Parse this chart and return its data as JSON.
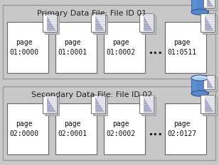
{
  "bg_color": "#c8c8c8",
  "box_bg": "#ffffff",
  "box_border": "#666666",
  "section_border": "#888888",
  "title1": "Primary Data File: File ID 01",
  "title2": "Secondary Data File: File ID 02",
  "pages1": [
    "page\n01:0000",
    "page\n01:0001",
    "page\n01:0002",
    "page\n01:0511"
  ],
  "pages2": [
    "page\n02:0000",
    "page\n02:0001",
    "page\n02:0002",
    "page\n02:0127"
  ],
  "page_label_fontsize": 7.0,
  "title_fontsize": 8.0,
  "cylinder_blue": "#5588cc",
  "cylinder_top": "#aaccee",
  "cylinder_light": "#77aadd",
  "dots": "•••",
  "doc_icon_stripe": "#aaaacc",
  "doc_icon_stripe2": "#8899bb"
}
